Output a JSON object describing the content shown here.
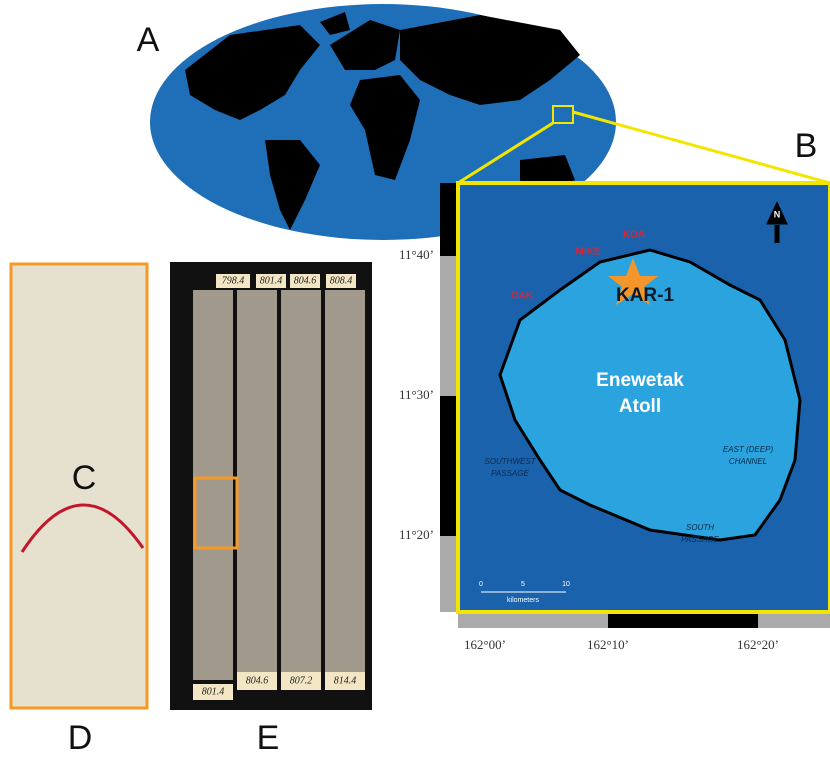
{
  "panels": {
    "a": "A",
    "b": "B",
    "c": "C",
    "d": "D",
    "e": "E"
  },
  "map": {
    "lat_labels": [
      "11°40’",
      "11°30’",
      "11°20’"
    ],
    "lon_labels": [
      "162°00’",
      "162°10’",
      "162°20’"
    ],
    "north": "N",
    "sites": [
      "KOA",
      "MIKE",
      "OAK"
    ],
    "core_site": "KAR-1",
    "atoll": [
      "Enewetak",
      "Atoll"
    ],
    "southwest_passage": [
      "SOUTHWEST",
      "PASSAGE"
    ],
    "east_channel": [
      "EAST (DEEP)",
      "CHANNEL"
    ],
    "south_passage": [
      "SOUTH",
      "PASSAGE"
    ],
    "scale_ticks": [
      "0",
      "5",
      "10"
    ],
    "scale_unit": "kilometers"
  },
  "cores": {
    "top_labels": [
      "798.4",
      "801.4",
      "804.6",
      "808.4"
    ],
    "bottom_labels": [
      "801.4",
      "804.6",
      "807.2",
      "814.4"
    ]
  }
}
